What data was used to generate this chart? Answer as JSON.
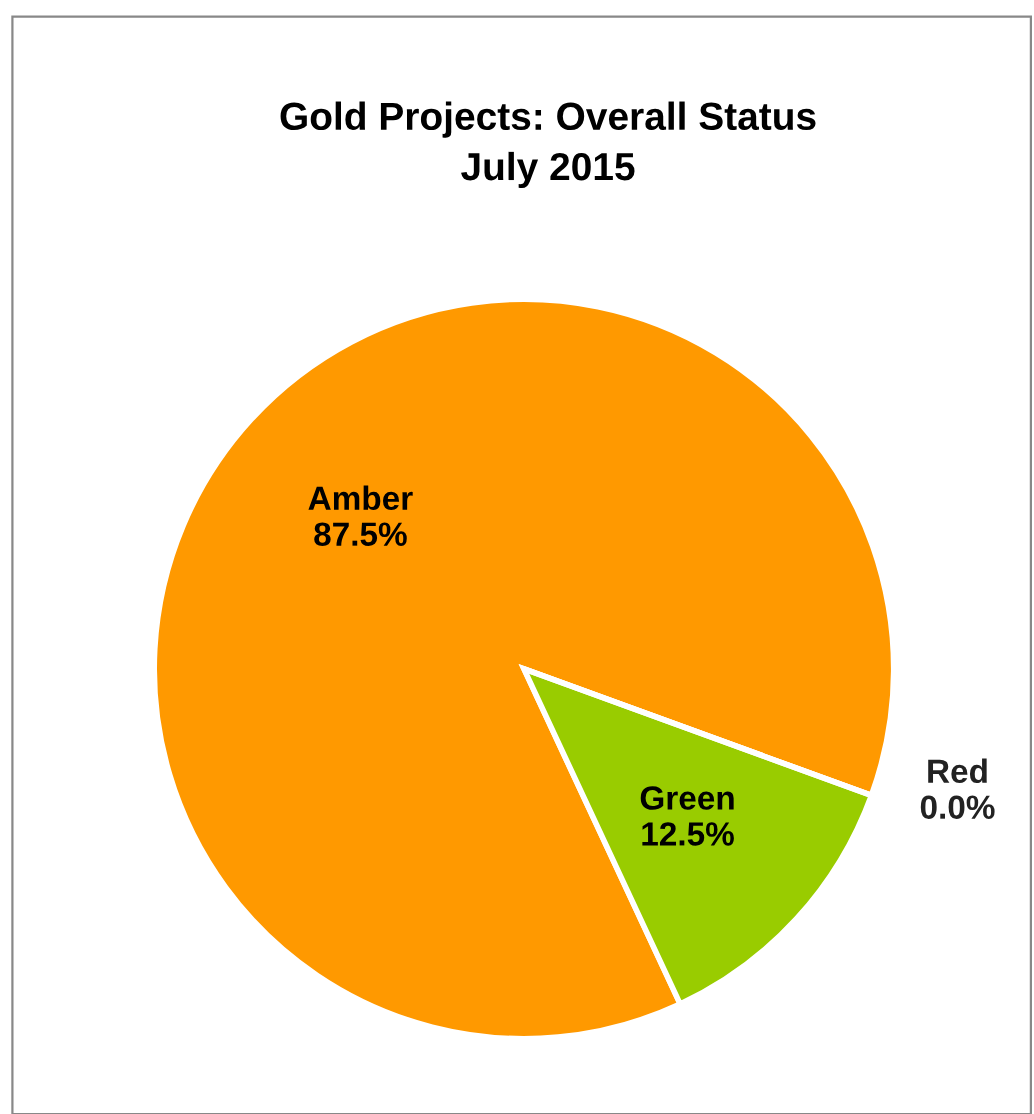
{
  "chart_data": {
    "type": "pie",
    "title": "Gold Projects: Overall Status\nJuly 2015",
    "categories": [
      "Amber",
      "Green",
      "Red"
    ],
    "values": [
      87.5,
      12.5,
      0.0
    ],
    "colors": [
      "#ff9900",
      "#99cc00",
      "#ff0000"
    ],
    "value_labels": [
      "87.5%",
      "12.5%",
      "0.0%"
    ],
    "legend": false
  }
}
